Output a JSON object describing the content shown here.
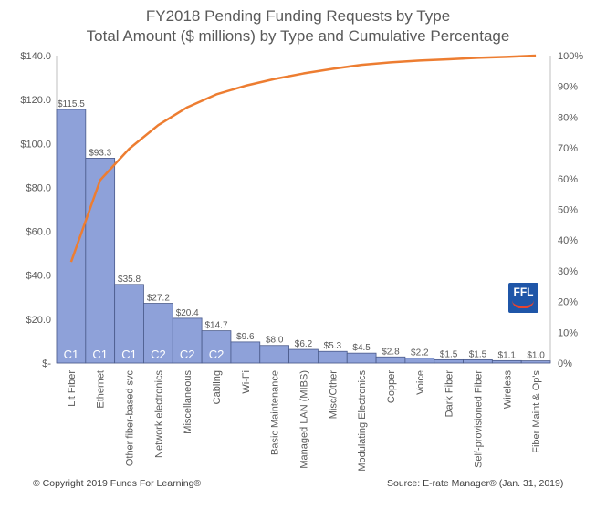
{
  "chart_data": {
    "type": "bar",
    "title": "FY2018 Pending Funding Requests by Type",
    "subtitle": "Total Amount ($ millions) by Type and Cumulative Percentage",
    "categories": [
      "Lit Fiber",
      "Ethernet",
      "Other fiber-based svc",
      "Network electronics",
      "Miscellaneous",
      "Cabling",
      "Wi-Fi",
      "Basic Maintenance",
      "Managed LAN (MIBS)",
      "Misc/Other",
      "Modulating Electronics",
      "Copper",
      "Voice",
      "Dark Fiber",
      "Self-provisioned Fiber",
      "Wireless",
      "Fiber Maint & Op's"
    ],
    "values": [
      115.5,
      93.3,
      35.8,
      27.2,
      20.4,
      14.7,
      9.6,
      8.0,
      6.2,
      5.3,
      4.5,
      2.8,
      2.2,
      1.5,
      1.5,
      1.1,
      1.0
    ],
    "value_labels": [
      "$115.5",
      "$93.3",
      "$35.8",
      "$27.2",
      "$20.4",
      "$14.7",
      "$9.6",
      "$8.0",
      "$6.2",
      "$5.3",
      "$4.5",
      "$2.8",
      "$2.2",
      "$1.5",
      "$1.5",
      "$1.1",
      "$1.0"
    ],
    "bar_tags": [
      "C1",
      "C1",
      "C1",
      "C2",
      "C2",
      "C2",
      "",
      "",
      "",
      "",
      "",
      "",
      "",
      "",
      "",
      "",
      ""
    ],
    "series": [
      {
        "values": [
          115.5,
          93.3,
          35.8,
          27.2,
          20.4,
          14.7,
          9.6,
          8.0,
          6.2,
          5.3,
          4.5,
          2.8,
          2.2,
          1.5,
          1.5,
          1.1,
          1.0
        ],
        "axis": "left",
        "kind": "bar",
        "color": "#8ea1d9"
      },
      {
        "values": [
          32.9,
          59.5,
          69.7,
          77.4,
          83.2,
          87.4,
          90.2,
          92.4,
          94.2,
          95.7,
          97.0,
          97.8,
          98.4,
          98.8,
          99.3,
          99.6,
          100.0
        ],
        "axis": "right",
        "kind": "line",
        "color": "#ed7d31"
      }
    ],
    "ylim": [
      0,
      140
    ],
    "y2lim": [
      0,
      100
    ],
    "y_ticks": [
      "$-",
      "$20.0",
      "$40.0",
      "$60.0",
      "$80.0",
      "$100.0",
      "$120.0",
      "$140.0"
    ],
    "y2_ticks": [
      "0%",
      "10%",
      "20%",
      "30%",
      "40%",
      "50%",
      "60%",
      "70%",
      "80%",
      "90%",
      "100%"
    ],
    "grid": false,
    "colors": {
      "bar": "#8ea1d9",
      "bar_edge": "#4a5a8a",
      "line": "#ed7d31",
      "text": "#595959",
      "tag_text": "#ffffff"
    }
  },
  "logo": {
    "text": "FFL",
    "color": "#1f56a8"
  },
  "footer": {
    "left": "© Copyright 2019 Funds For Learning®",
    "right": "Source: E-rate Manager®  (Jan. 31, 2019)"
  }
}
